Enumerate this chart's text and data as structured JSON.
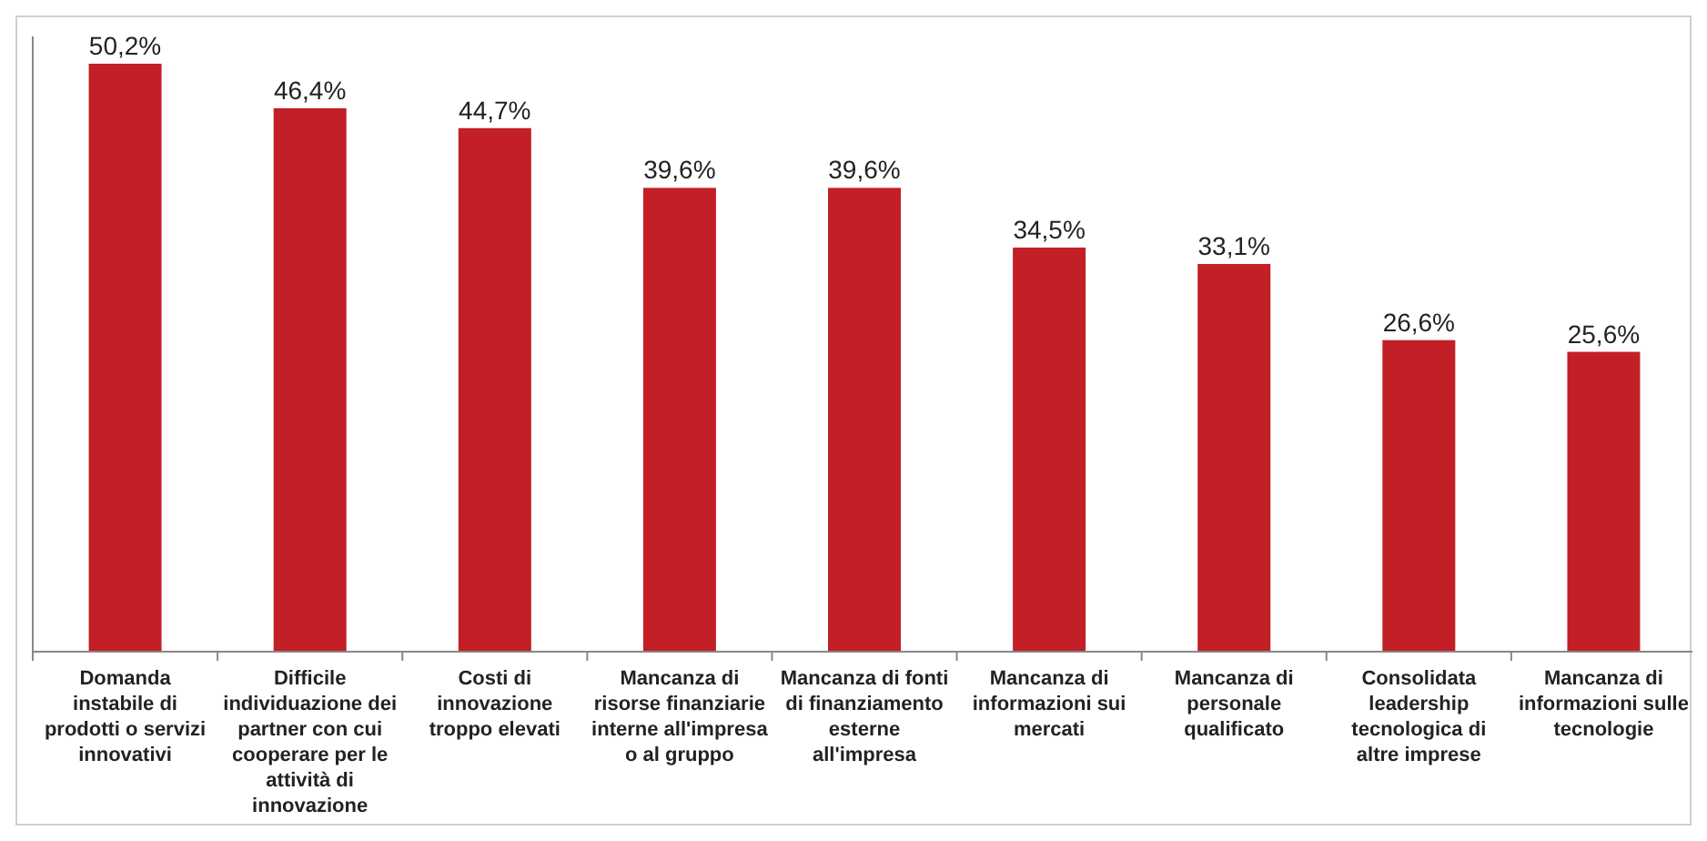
{
  "chart_data": {
    "type": "bar",
    "categories": [
      "Domanda instabile di prodotti o servizi innovativi",
      "Difficile individuazione dei partner con cui cooperare per le attività di innovazione",
      "Costi di innovazione troppo elevati",
      "Mancanza di risorse finanziarie interne all'impresa o al gruppo",
      "Mancanza di fonti di finanziamento esterne all'impresa",
      "Mancanza di informazioni sui mercati",
      "Mancanza di personale qualificato",
      "Consolidata leadership tecnologica di altre imprese",
      "Mancanza di informazioni sulle tecnologie"
    ],
    "values": [
      50.2,
      46.4,
      44.7,
      39.6,
      39.6,
      34.5,
      33.1,
      26.6,
      25.6
    ],
    "value_labels": [
      "50,2%",
      "46,4%",
      "44,7%",
      "39,6%",
      "39,6%",
      "34,5%",
      "33,1%",
      "26,6%",
      "25,6%"
    ],
    "color": "#c21f26"
  }
}
